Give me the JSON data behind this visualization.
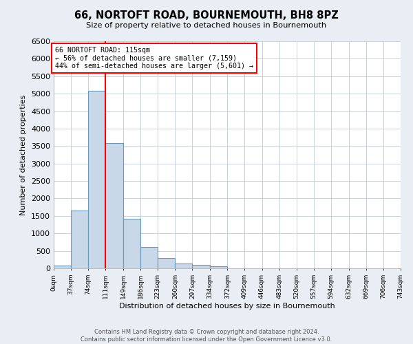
{
  "title": "66, NORTOFT ROAD, BOURNEMOUTH, BH8 8PZ",
  "subtitle": "Size of property relative to detached houses in Bournemouth",
  "xlabel": "Distribution of detached houses by size in Bournemouth",
  "ylabel": "Number of detached properties",
  "bin_edges": [
    0,
    37,
    74,
    111,
    149,
    186,
    223,
    260,
    297,
    334,
    372,
    409,
    446,
    483,
    520,
    557,
    594,
    632,
    669,
    706,
    743
  ],
  "bar_heights": [
    75,
    1650,
    5080,
    3580,
    1420,
    610,
    300,
    140,
    100,
    60,
    0,
    0,
    0,
    0,
    0,
    0,
    0,
    0,
    0,
    0
  ],
  "bar_color": "#c8d8e8",
  "bar_edge_color": "#6699bb",
  "property_line_x": 111,
  "property_line_color": "red",
  "box_text_line1": "66 NORTOFT ROAD: 115sqm",
  "box_text_line2": "← 56% of detached houses are smaller (7,159)",
  "box_text_line3": "44% of semi-detached houses are larger (5,601) →",
  "box_color": "red",
  "box_fill": "white",
  "ylim": [
    0,
    6500
  ],
  "yticks": [
    0,
    500,
    1000,
    1500,
    2000,
    2500,
    3000,
    3500,
    4000,
    4500,
    5000,
    5500,
    6000,
    6500
  ],
  "tick_labels": [
    "0sqm",
    "37sqm",
    "74sqm",
    "111sqm",
    "149sqm",
    "186sqm",
    "223sqm",
    "260sqm",
    "297sqm",
    "334sqm",
    "372sqm",
    "409sqm",
    "446sqm",
    "483sqm",
    "520sqm",
    "557sqm",
    "594sqm",
    "632sqm",
    "669sqm",
    "706sqm",
    "743sqm"
  ],
  "footer_line1": "Contains HM Land Registry data © Crown copyright and database right 2024.",
  "footer_line2": "Contains public sector information licensed under the Open Government Licence v3.0.",
  "background_color": "#e8eef4",
  "plot_background_color": "white",
  "grid_color": "#c8d0d8"
}
